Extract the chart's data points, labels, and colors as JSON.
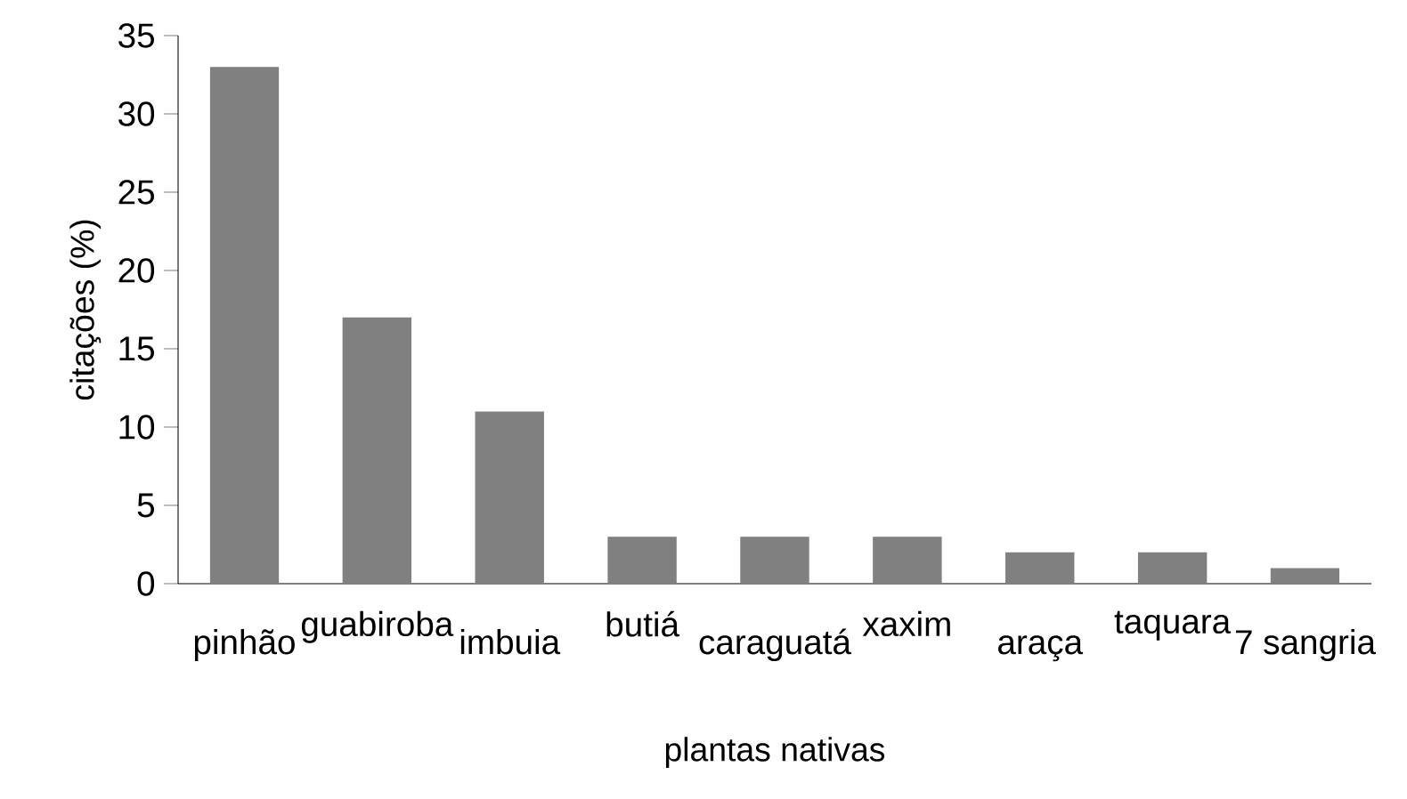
{
  "chart_data": {
    "type": "bar",
    "xlabel": "plantas nativas",
    "ylabel": "citações (%)",
    "categories": [
      "pinhão",
      "guabiroba",
      "imbuia",
      "butiá",
      "caraguatá",
      "xaxim",
      "araça",
      "taquara",
      "7 sangria"
    ],
    "values": [
      33,
      17,
      11,
      3,
      3,
      3,
      2,
      2,
      1
    ],
    "color": "#808080",
    "ylim": [
      0,
      35
    ],
    "yticks": [
      0,
      5,
      10,
      15,
      20,
      25,
      30,
      35
    ]
  }
}
